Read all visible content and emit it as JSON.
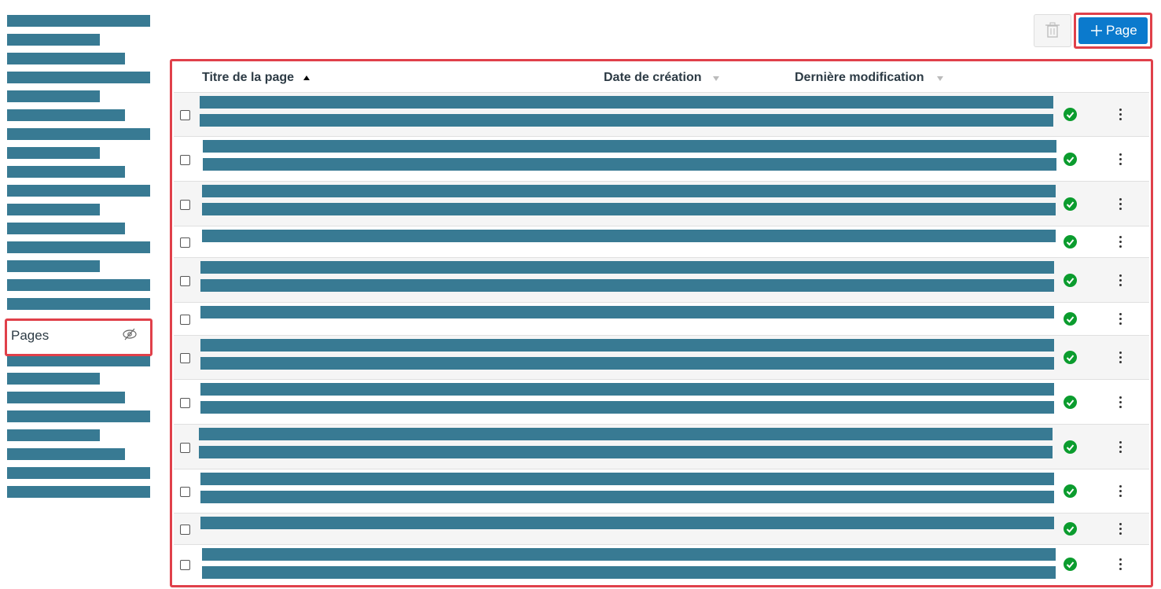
{
  "sidebar": {
    "active_item": "Pages"
  },
  "toolbar": {
    "new_button": "Page"
  },
  "table": {
    "columns": [
      "Titre de la page",
      "Date de création",
      "Dernière modification"
    ]
  }
}
